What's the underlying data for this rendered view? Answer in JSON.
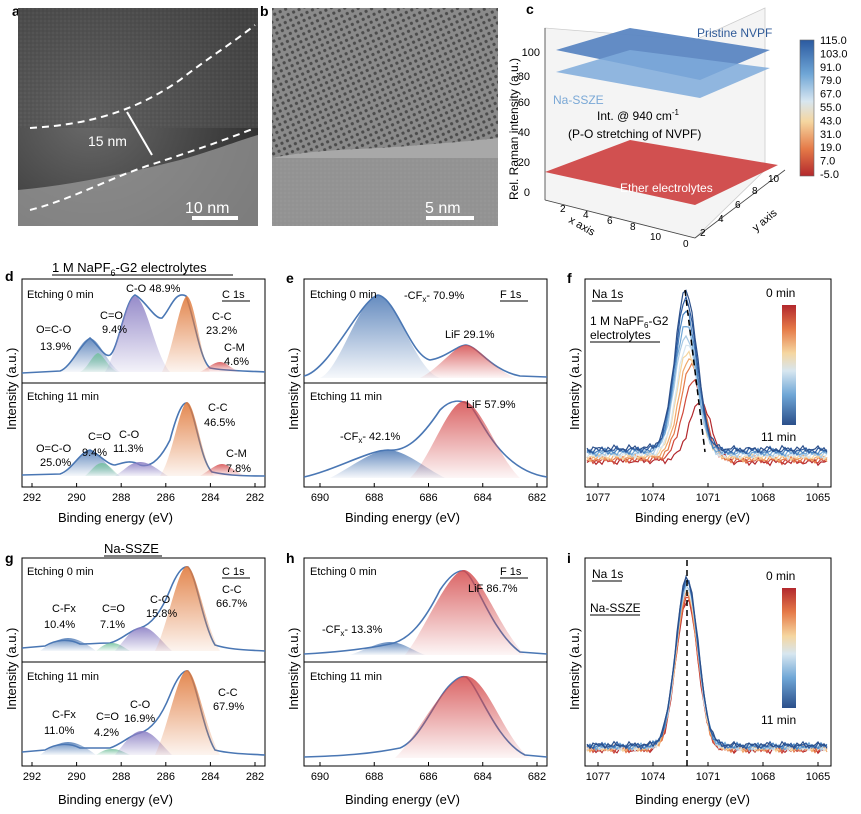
{
  "panels": {
    "a": {
      "label": "a",
      "scale": "10 nm",
      "width_label": "15 nm"
    },
    "b": {
      "label": "b",
      "scale": "5 nm"
    },
    "c": {
      "label": "c",
      "zlabel": "Rel. Raman intensity (a.u.)",
      "xaxis": "x axis",
      "yaxis": "y axis",
      "pristine": "Pristine NVPF",
      "nassze": "Na-SSZE",
      "ether": "Ether electrolytes",
      "annot1": "Int. @ 940 cm",
      "annot1_sup": "-1",
      "annot2": "(P-O stretching of NVPF)",
      "zticks": [
        "0",
        "20",
        "40",
        "60",
        "80",
        "100"
      ],
      "xticks": [
        "2",
        "4",
        "6",
        "8",
        "10"
      ],
      "yticks": [
        "0",
        "2",
        "4",
        "6",
        "8",
        "10"
      ],
      "colorbar": [
        "115.0",
        "103.0",
        "91.0",
        "79.0",
        "67.0",
        "55.0",
        "43.0",
        "31.0",
        "19.0",
        "7.0",
        "-5.0"
      ]
    },
    "d": {
      "label": "d",
      "header": "1 M NaPF",
      "header_sub": "6",
      "header_tail": "-G2 electrolytes",
      "tag": "C 1s",
      "etch0": "Etching 0 min",
      "etch11": "Etching 11 min",
      "labels_top": [
        "O=C-O",
        "13.9%",
        "C=O",
        "9.4%",
        "C-O 48.9%",
        "C-C",
        "23.2%",
        "C-M",
        "4.6%"
      ],
      "labels_bot": [
        "O=C-O",
        "25.0%",
        "C=O",
        "9.4%",
        "C-O",
        "11.3%",
        "C-C",
        "46.5%",
        "C-M",
        "7.8%"
      ],
      "xticks": [
        "292",
        "290",
        "288",
        "286",
        "284",
        "282"
      ]
    },
    "e": {
      "label": "e",
      "tag": "F 1s",
      "etch0": "Etching 0 min",
      "etch11": "Etching 11 min",
      "cfx_top": "-CF",
      "cfx_top_val": "- 70.9%",
      "lif_top": "LiF 29.1%",
      "cfx_bot": "-CF",
      "cfx_bot_val": "- 42.1%",
      "lif_bot": "LiF 57.9%",
      "x_sub": "x",
      "xticks": [
        "690",
        "688",
        "686",
        "684",
        "682"
      ]
    },
    "f": {
      "label": "f",
      "tag": "Na 1s",
      "line1": "1 M NaPF",
      "line1_sub": "6",
      "line1_tail": "-G2",
      "line2": "electrolytes",
      "cb_top": "0 min",
      "cb_bot": "11 min",
      "xticks": [
        "1077",
        "1074",
        "1071",
        "1068",
        "1065"
      ]
    },
    "g": {
      "label": "g",
      "header": "Na-SSZE",
      "tag": "C 1s",
      "etch0": "Etching 0 min",
      "etch11": "Etching 11 min",
      "labels_top": [
        "C-Fx",
        "10.4%",
        "C=O",
        "7.1%",
        "C-O",
        "15.8%",
        "C-C",
        "66.7%"
      ],
      "labels_bot": [
        "C-Fx",
        "11.0%",
        "C=O",
        "4.2%",
        "C-O",
        "16.9%",
        "C-C",
        "67.9%"
      ],
      "xticks": [
        "292",
        "290",
        "288",
        "286",
        "284",
        "282"
      ]
    },
    "h": {
      "label": "h",
      "tag": "F 1s",
      "etch0": "Etching 0 min",
      "etch11": "Etching 11 min",
      "cfx": "-CF",
      "cfx_val": "- 13.3%",
      "lif": "LiF 86.7%",
      "x_sub": "x",
      "xticks": [
        "690",
        "688",
        "686",
        "684",
        "682"
      ]
    },
    "i": {
      "label": "i",
      "tag": "Na 1s",
      "line1": "Na-SSZE",
      "cb_top": "0 min",
      "cb_bot": "11 min",
      "xticks": [
        "1077",
        "1074",
        "1071",
        "1068",
        "1065"
      ]
    }
  },
  "axis": {
    "ylabel": "Intensity (a.u.)",
    "xlabel": "Binding energy (eV)"
  },
  "colors": {
    "blue": "#4a77b4",
    "orange": "#e07a3c",
    "red": "#d4494a",
    "purple": "#8b7fc4",
    "green": "#6fbf9a"
  }
}
